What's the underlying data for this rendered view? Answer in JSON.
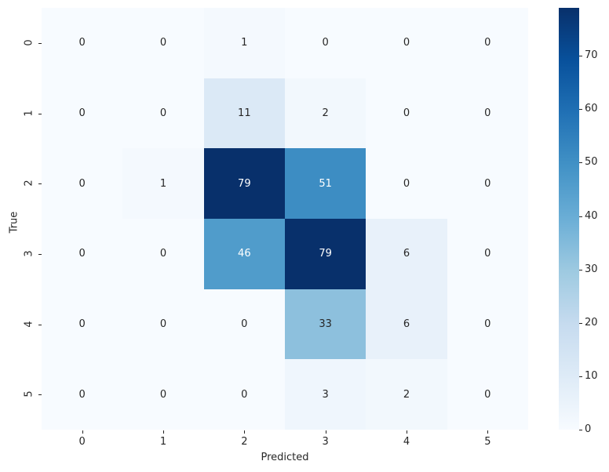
{
  "chart_data": {
    "type": "heatmap",
    "title": "",
    "xlabel": "Predicted",
    "ylabel": "True",
    "x_categories": [
      "0",
      "1",
      "2",
      "3",
      "4",
      "5"
    ],
    "y_categories": [
      "0",
      "1",
      "2",
      "3",
      "4",
      "5"
    ],
    "values": [
      [
        0,
        0,
        1,
        0,
        0,
        0
      ],
      [
        0,
        0,
        11,
        2,
        0,
        0
      ],
      [
        0,
        1,
        79,
        51,
        0,
        0
      ],
      [
        0,
        0,
        46,
        79,
        6,
        0
      ],
      [
        0,
        0,
        0,
        33,
        6,
        0
      ],
      [
        0,
        0,
        0,
        3,
        2,
        0
      ]
    ],
    "colormap": "Blues",
    "colorbar": {
      "min": 0,
      "max": 79,
      "ticks": [
        0,
        10,
        20,
        30,
        40,
        50,
        60,
        70
      ]
    },
    "annotations": true
  }
}
